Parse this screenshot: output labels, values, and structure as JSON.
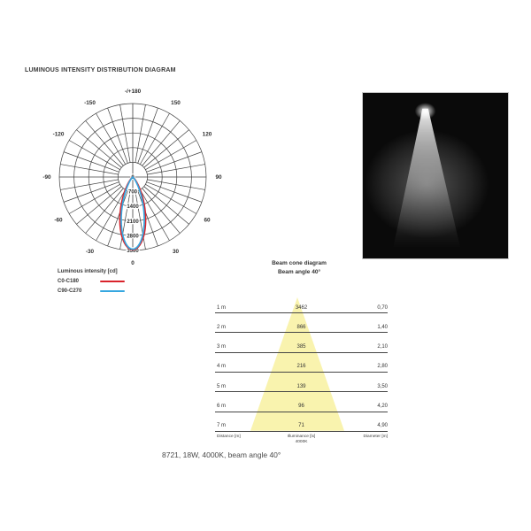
{
  "title": "LUMINOUS INTENSITY DISTRIBUTION DIAGRAM",
  "caption": "8721, 18W, 4000K, beam angle 40°",
  "colors": {
    "text": "#3a3a3a",
    "grid": "#3f3f3f",
    "red_curve": "#d9232b",
    "blue_curve": "#36a7e0",
    "cone_fill": "#f9f3ae",
    "photo_bg": "#0a0a0a"
  },
  "legend": {
    "title": "Luminous intensity [cd]",
    "entries": [
      {
        "label": "C0-C180",
        "color": "#d9232b"
      },
      {
        "label": "C90-C270",
        "color": "#36a7e0"
      }
    ]
  },
  "beam_cone": {
    "title_line1": "Beam cone diagram",
    "title_line2": "Beam angle 40°",
    "beam_angle_deg": 40,
    "cone_color": "#f9f3ae",
    "footer": {
      "left": "Distance [m]",
      "center1": "Illuminance [lx]",
      "center2": "4000K",
      "right": "Diameter [m]"
    }
  },
  "chart_data": [
    {
      "type": "line",
      "subtype": "polar",
      "title": "LUMINOUS INTENSITY DISTRIBUTION DIAGRAM",
      "unit": "cd",
      "max_cd": 3500,
      "radial_ticks": [
        0,
        700,
        1400,
        2100,
        2800,
        3500
      ],
      "spoke_step_deg": 10,
      "angle_labels": [
        {
          "deg": 0,
          "label": "0"
        },
        {
          "deg": 30,
          "label": "30"
        },
        {
          "deg": 60,
          "label": "60"
        },
        {
          "deg": 90,
          "label": "90"
        },
        {
          "deg": 120,
          "label": "120"
        },
        {
          "deg": 150,
          "label": "150"
        },
        {
          "deg": 180,
          "label": "-/+180"
        },
        {
          "deg": -150,
          "label": "-150"
        },
        {
          "deg": -120,
          "label": "-120"
        },
        {
          "deg": -90,
          "label": "-90"
        },
        {
          "deg": -60,
          "label": "-60"
        },
        {
          "deg": -30,
          "label": "-30"
        }
      ],
      "series": [
        {
          "name": "C0-C180",
          "color": "#d9232b",
          "peak_cd": 3462,
          "half_angle_deg": 20
        },
        {
          "name": "C90-C270",
          "color": "#36a7e0",
          "peak_cd": 3440,
          "half_angle_deg": 18
        }
      ],
      "legend_position": "below-left"
    },
    {
      "type": "table",
      "title": "Beam cone diagram",
      "subtitle": "Beam angle 40°",
      "columns": [
        "Distance [m]",
        "Illuminance [lx] 4000K",
        "Diameter [m]"
      ],
      "rows": [
        [
          "1 m",
          "3462",
          "0,70"
        ],
        [
          "2 m",
          "866",
          "1,40"
        ],
        [
          "3 m",
          "385",
          "2,10"
        ],
        [
          "4 m",
          "216",
          "2,80"
        ],
        [
          "5 m",
          "139",
          "3,50"
        ],
        [
          "6 m",
          "96",
          "4,20"
        ],
        [
          "7 m",
          "71",
          "4,90"
        ]
      ]
    }
  ]
}
